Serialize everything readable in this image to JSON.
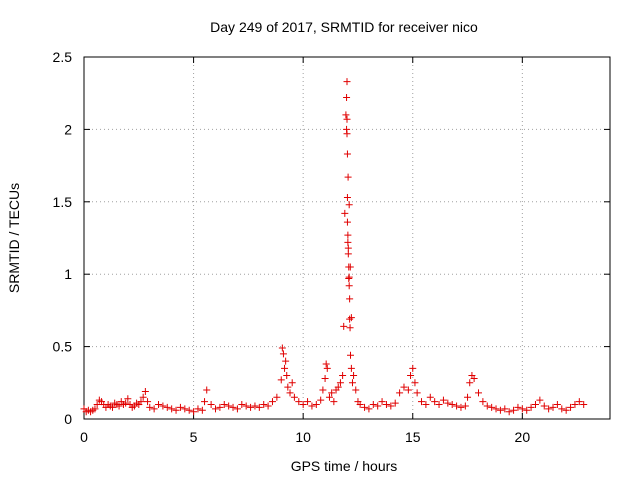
{
  "chart_data": {
    "type": "scatter",
    "title": "Day 249 of 2017, SRMTID for receiver nico",
    "xlabel": "GPS time / hours",
    "ylabel": "SRMTID / TECUs",
    "xlim": [
      0,
      24
    ],
    "ylim": [
      0,
      2.5
    ],
    "xticks": [
      0,
      5,
      10,
      15,
      20
    ],
    "xtick_labels": [
      "0",
      "5",
      "10",
      "15",
      "20"
    ],
    "yticks": [
      0,
      0.5,
      1,
      1.5,
      2,
      2.5
    ],
    "ytick_labels": [
      "0",
      "0.5",
      "1",
      "1.5",
      "2",
      "2.5"
    ],
    "grid": true,
    "marker": "+",
    "series": [
      {
        "name": "SRMTID",
        "color": "#e00000",
        "x": [
          0.0,
          0.1,
          0.2,
          0.3,
          0.4,
          0.5,
          0.6,
          0.7,
          0.8,
          0.9,
          1.0,
          1.1,
          1.2,
          1.3,
          1.4,
          1.5,
          1.6,
          1.7,
          1.8,
          1.9,
          2.0,
          2.1,
          2.2,
          2.3,
          2.4,
          2.5,
          2.6,
          2.7,
          2.8,
          2.9,
          3.0,
          3.2,
          3.4,
          3.6,
          3.8,
          4.0,
          4.2,
          4.4,
          4.6,
          4.8,
          5.0,
          5.2,
          5.4,
          5.5,
          5.6,
          5.8,
          6.0,
          6.2,
          6.4,
          6.6,
          6.8,
          7.0,
          7.2,
          7.4,
          7.6,
          7.8,
          8.0,
          8.2,
          8.4,
          8.6,
          8.8,
          9.0,
          9.05,
          9.1,
          9.15,
          9.2,
          9.25,
          9.3,
          9.4,
          9.5,
          9.6,
          9.8,
          10.0,
          10.2,
          10.4,
          10.6,
          10.8,
          10.9,
          11.0,
          11.05,
          11.1,
          11.2,
          11.3,
          11.4,
          11.5,
          11.6,
          11.7,
          11.8,
          11.85,
          11.9,
          11.95,
          12.0,
          12.02,
          12.05,
          12.1,
          12.15,
          12.2,
          12.3,
          12.4,
          12.5,
          12.6,
          12.8,
          13.0,
          13.2,
          13.4,
          13.6,
          13.8,
          14.0,
          14.2,
          14.4,
          14.6,
          14.8,
          14.9,
          15.0,
          15.1,
          15.2,
          15.4,
          15.6,
          15.8,
          16.0,
          16.2,
          16.4,
          16.6,
          16.8,
          17.0,
          17.2,
          17.4,
          17.5,
          17.6,
          17.7,
          17.8,
          18.0,
          18.2,
          18.4,
          18.6,
          18.8,
          19.0,
          19.2,
          19.4,
          19.6,
          19.8,
          20.0,
          20.2,
          20.4,
          20.6,
          20.8,
          21.0,
          21.2,
          21.4,
          21.6,
          21.8,
          22.0,
          22.2,
          22.4,
          22.6,
          22.8,
          11.98,
          11.98,
          12.0,
          12.0,
          12.02,
          12.02,
          12.04,
          12.04,
          12.06,
          12.06,
          12.08,
          12.08,
          12.1,
          12.1,
          12.12,
          12.12,
          12.14,
          12.16,
          12.2,
          12.25
        ],
        "y": [
          0.07,
          0.05,
          0.06,
          0.05,
          0.06,
          0.07,
          0.1,
          0.13,
          0.12,
          0.1,
          0.08,
          0.1,
          0.09,
          0.08,
          0.11,
          0.1,
          0.09,
          0.12,
          0.1,
          0.11,
          0.14,
          0.1,
          0.08,
          0.09,
          0.11,
          0.1,
          0.12,
          0.15,
          0.19,
          0.12,
          0.08,
          0.07,
          0.1,
          0.09,
          0.08,
          0.07,
          0.06,
          0.08,
          0.07,
          0.06,
          0.05,
          0.07,
          0.06,
          0.12,
          0.2,
          0.1,
          0.07,
          0.08,
          0.1,
          0.09,
          0.08,
          0.07,
          0.1,
          0.09,
          0.08,
          0.09,
          0.08,
          0.1,
          0.09,
          0.12,
          0.15,
          0.27,
          0.49,
          0.45,
          0.35,
          0.4,
          0.3,
          0.22,
          0.18,
          0.25,
          0.15,
          0.12,
          0.1,
          0.12,
          0.09,
          0.1,
          0.13,
          0.2,
          0.28,
          0.38,
          0.35,
          0.15,
          0.18,
          0.12,
          0.2,
          0.22,
          0.25,
          0.3,
          0.64,
          1.42,
          2.1,
          2.33,
          1.83,
          1.67,
          1.48,
          1.05,
          0.7,
          0.3,
          0.2,
          0.12,
          0.1,
          0.08,
          0.07,
          0.1,
          0.09,
          0.12,
          0.1,
          0.09,
          0.11,
          0.18,
          0.22,
          0.2,
          0.3,
          0.35,
          0.25,
          0.18,
          0.12,
          0.1,
          0.15,
          0.12,
          0.1,
          0.13,
          0.11,
          0.1,
          0.09,
          0.08,
          0.09,
          0.15,
          0.25,
          0.3,
          0.28,
          0.18,
          0.12,
          0.09,
          0.08,
          0.07,
          0.06,
          0.07,
          0.05,
          0.06,
          0.08,
          0.07,
          0.06,
          0.08,
          0.1,
          0.13,
          0.09,
          0.07,
          0.08,
          0.1,
          0.07,
          0.06,
          0.08,
          0.1,
          0.12,
          0.1,
          2.22,
          2.0,
          2.07,
          1.97,
          1.53,
          1.36,
          1.27,
          1.22,
          1.18,
          1.14,
          1.05,
          0.97,
          0.98,
          0.92,
          0.83,
          0.69,
          0.63,
          0.44,
          0.35,
          0.25
        ]
      }
    ]
  }
}
